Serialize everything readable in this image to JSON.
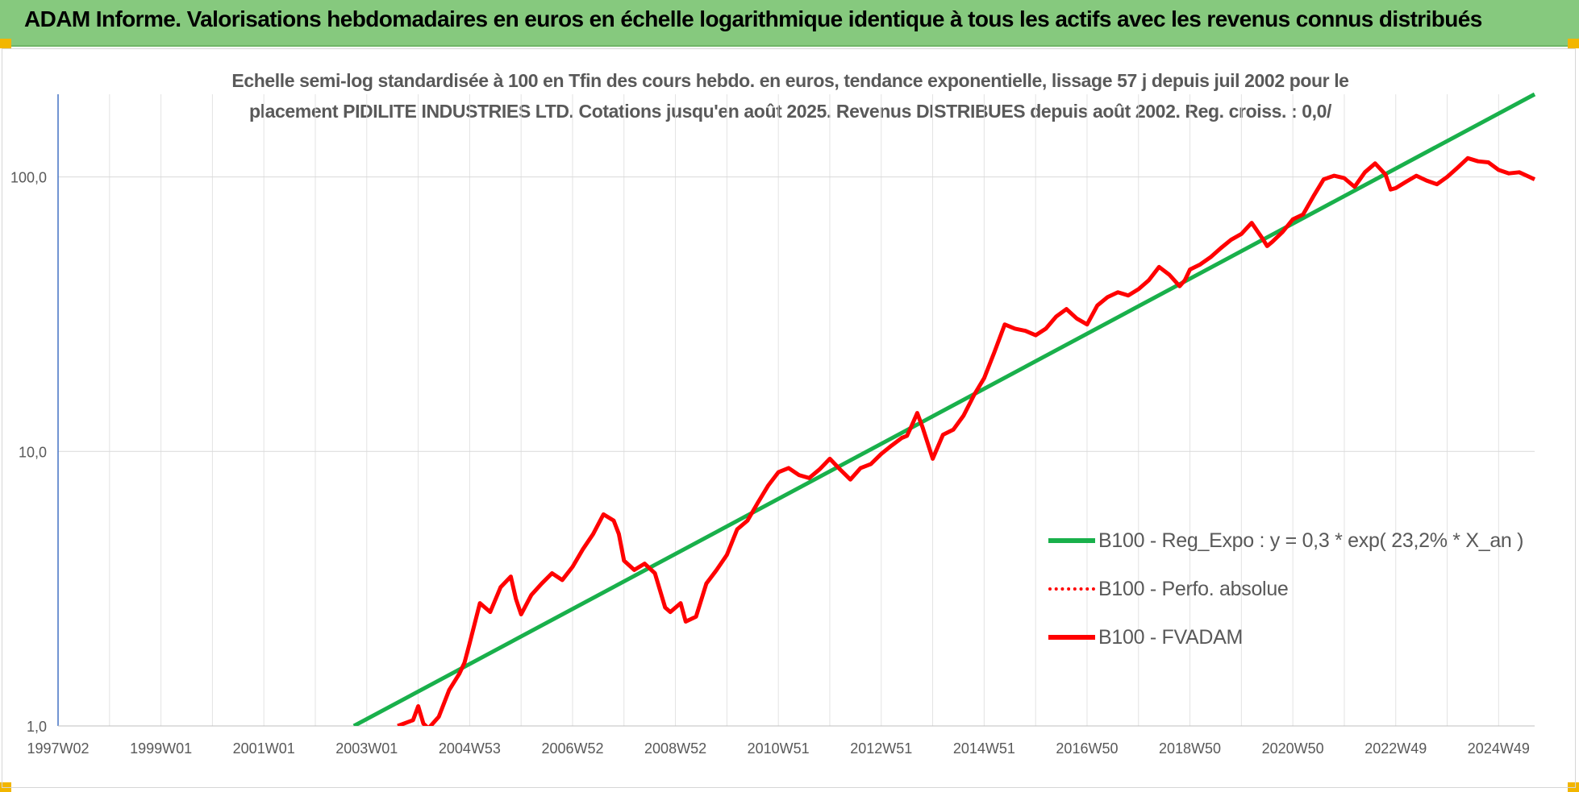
{
  "header": {
    "title": "ADAM Informe. Valorisations hebdomadaires en euros en échelle logarithmique identique à tous les actifs avec les revenus connus distribués"
  },
  "chart_data": {
    "type": "line",
    "title_line1": "Echelle semi-log standardisée à 100 en Tfin des cours hebdo. en euros, tendance exponentielle, lissage 57 j depuis juil 2002 pour le",
    "title_line2": "placement PIDILITE INDUSTRIES LTD. Cotations jusqu'en août 2025.  Revenus DISTRIBUES depuis août 2002. Reg. croiss. : 0,0/",
    "yscale": "log",
    "ylim": [
      1,
      200
    ],
    "yticks": [
      {
        "value": 1,
        "label": "1,0"
      },
      {
        "value": 10,
        "label": "10,0"
      },
      {
        "value": 100,
        "label": "100,0"
      }
    ],
    "xlim": [
      1997.0,
      2025.7
    ],
    "xticks": [
      {
        "x": 1997.0,
        "label": "1997W02"
      },
      {
        "x": 1999.0,
        "label": "1999W01"
      },
      {
        "x": 2001.0,
        "label": "2001W01"
      },
      {
        "x": 2003.0,
        "label": "2003W01"
      },
      {
        "x": 2005.0,
        "label": "2004W53"
      },
      {
        "x": 2007.0,
        "label": "2006W52"
      },
      {
        "x": 2009.0,
        "label": "2008W52"
      },
      {
        "x": 2011.0,
        "label": "2010W51"
      },
      {
        "x": 2013.0,
        "label": "2012W51"
      },
      {
        "x": 2015.0,
        "label": "2014W51"
      },
      {
        "x": 2017.0,
        "label": "2016W50"
      },
      {
        "x": 2019.0,
        "label": "2018W50"
      },
      {
        "x": 2021.0,
        "label": "2020W50"
      },
      {
        "x": 2023.0,
        "label": "2022W49"
      },
      {
        "x": 2025.0,
        "label": "2024W49"
      }
    ],
    "grid": true,
    "legend_position": "right",
    "series": [
      {
        "name": "B100 - Reg_Expo : y = 0,3 * exp( 23,2% *  X_an )",
        "color": "#19b04b",
        "style": "solid",
        "x": [
          2002.75,
          2025.7
        ],
        "y": [
          1.0,
          200.0
        ]
      },
      {
        "name": "B100 - Perfo. absolue",
        "color": "#ff0000",
        "style": "dotted",
        "x": [],
        "y": []
      },
      {
        "name": "B100 - FVADAM",
        "color": "#ff0000",
        "style": "solid",
        "x": [
          2003.6,
          2003.9,
          2004.0,
          2004.1,
          2004.2,
          2004.4,
          2004.6,
          2004.8,
          2004.9,
          2005.0,
          2005.2,
          2005.4,
          2005.6,
          2005.8,
          2005.9,
          2006.0,
          2006.2,
          2006.4,
          2006.6,
          2006.8,
          2007.0,
          2007.2,
          2007.4,
          2007.6,
          2007.8,
          2007.9,
          2008.0,
          2008.2,
          2008.4,
          2008.6,
          2008.8,
          2008.9,
          2009.1,
          2009.2,
          2009.4,
          2009.6,
          2009.8,
          2010.0,
          2010.2,
          2010.4,
          2010.6,
          2010.8,
          2011.0,
          2011.2,
          2011.4,
          2011.6,
          2011.8,
          2012.0,
          2012.2,
          2012.4,
          2012.6,
          2012.8,
          2013.0,
          2013.2,
          2013.4,
          2013.5,
          2013.6,
          2013.7,
          2013.8,
          2014.0,
          2014.2,
          2014.4,
          2014.6,
          2014.8,
          2015.0,
          2015.2,
          2015.4,
          2015.6,
          2015.8,
          2016.0,
          2016.2,
          2016.4,
          2016.6,
          2016.8,
          2017.0,
          2017.2,
          2017.4,
          2017.6,
          2017.8,
          2018.0,
          2018.2,
          2018.4,
          2018.6,
          2018.8,
          2018.9,
          2019.0,
          2019.2,
          2019.4,
          2019.6,
          2019.8,
          2020.0,
          2020.2,
          2020.4,
          2020.5,
          2020.6,
          2020.8,
          2021.0,
          2021.2,
          2021.4,
          2021.6,
          2021.8,
          2022.0,
          2022.2,
          2022.4,
          2022.6,
          2022.8,
          2022.9,
          2023.0,
          2023.2,
          2023.4,
          2023.6,
          2023.8,
          2024.0,
          2024.2,
          2024.4,
          2024.6,
          2024.8,
          2025.0,
          2025.2,
          2025.4,
          2025.6,
          2025.7
        ],
        "y": [
          1.0,
          1.05,
          1.18,
          1.02,
          0.98,
          1.08,
          1.35,
          1.55,
          1.7,
          2.0,
          2.8,
          2.6,
          3.2,
          3.5,
          2.9,
          2.55,
          3.0,
          3.3,
          3.6,
          3.4,
          3.8,
          4.4,
          5.0,
          5.9,
          5.6,
          5.0,
          4.0,
          3.7,
          3.9,
          3.6,
          2.7,
          2.6,
          2.8,
          2.4,
          2.5,
          3.3,
          3.7,
          4.2,
          5.2,
          5.6,
          6.5,
          7.5,
          8.4,
          8.7,
          8.2,
          8.0,
          8.6,
          9.4,
          8.6,
          7.9,
          8.7,
          9.0,
          9.8,
          10.5,
          11.2,
          11.4,
          12.5,
          13.8,
          12.3,
          9.4,
          11.5,
          12.0,
          13.5,
          16.0,
          18.5,
          23.0,
          29.0,
          28.0,
          27.5,
          26.5,
          28.0,
          31.0,
          33.0,
          30.5,
          29.0,
          34.0,
          36.5,
          38.0,
          37.0,
          39.0,
          42.0,
          47.0,
          44.0,
          40.0,
          42.0,
          46.0,
          48.0,
          51.0,
          55.0,
          59.0,
          62.0,
          68.0,
          60.0,
          56.0,
          58.0,
          63.0,
          70.0,
          73.0,
          85.0,
          98.0,
          101.0,
          99.0,
          92.0,
          104.0,
          112.0,
          102.0,
          90.0,
          91.0,
          96.0,
          101.0,
          97.0,
          94.0,
          100.0,
          108.0,
          117.0,
          114.0,
          113.0,
          106.0,
          103.0,
          104.0,
          100.0,
          98.0
        ]
      }
    ]
  }
}
